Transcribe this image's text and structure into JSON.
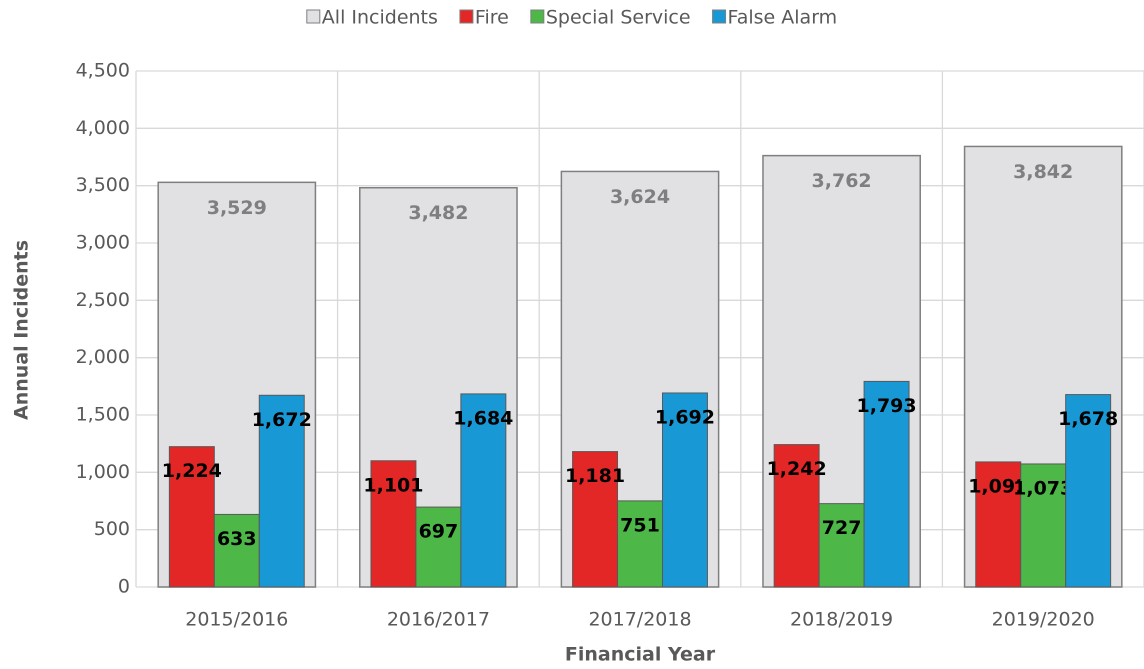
{
  "chart_data": {
    "type": "bar",
    "x_label": "Financial Year",
    "y_label": "Annual Incidents",
    "categories": [
      "2015/2016",
      "2016/2017",
      "2017/2018",
      "2018/2019",
      "2019/2020"
    ],
    "series": [
      {
        "name": "All Incidents",
        "color": "#e1e1e4",
        "values": [
          3529,
          3482,
          3624,
          3762,
          3842
        ],
        "value_labels": [
          "3,529",
          "3,482",
          "3,624",
          "3,762",
          "3,842"
        ]
      },
      {
        "name": "Fire",
        "color": "#e32626",
        "values": [
          1224,
          1101,
          1181,
          1242,
          1091
        ],
        "value_labels": [
          "1,224",
          "1,101",
          "1,181",
          "1,242",
          "1,091"
        ]
      },
      {
        "name": "Special Service",
        "color": "#4db848",
        "values": [
          633,
          697,
          751,
          727,
          1073
        ],
        "value_labels": [
          "633",
          "697",
          "751",
          "727",
          "1,073"
        ]
      },
      {
        "name": "False Alarm",
        "color": "#1899d6",
        "values": [
          1672,
          1684,
          1692,
          1793,
          1678
        ],
        "value_labels": [
          "1,672",
          "1,684",
          "1,692",
          "1,793",
          "1,678"
        ]
      }
    ],
    "ylim": [
      0,
      4500
    ],
    "yticks": [
      0,
      500,
      {
        "value": 1000,
        "label": "1,000"
      },
      {
        "value": 1500,
        "label": "1,500"
      },
      {
        "value": 2000,
        "label": "2,000"
      },
      {
        "value": 2500,
        "label": "2,500"
      },
      {
        "value": 3000,
        "label": "3,000"
      },
      {
        "value": 3500,
        "label": "3,500"
      },
      {
        "value": 4000,
        "label": "4,000"
      },
      {
        "value": 4500,
        "label": "4,500"
      }
    ],
    "grid": true,
    "legend": "top"
  }
}
